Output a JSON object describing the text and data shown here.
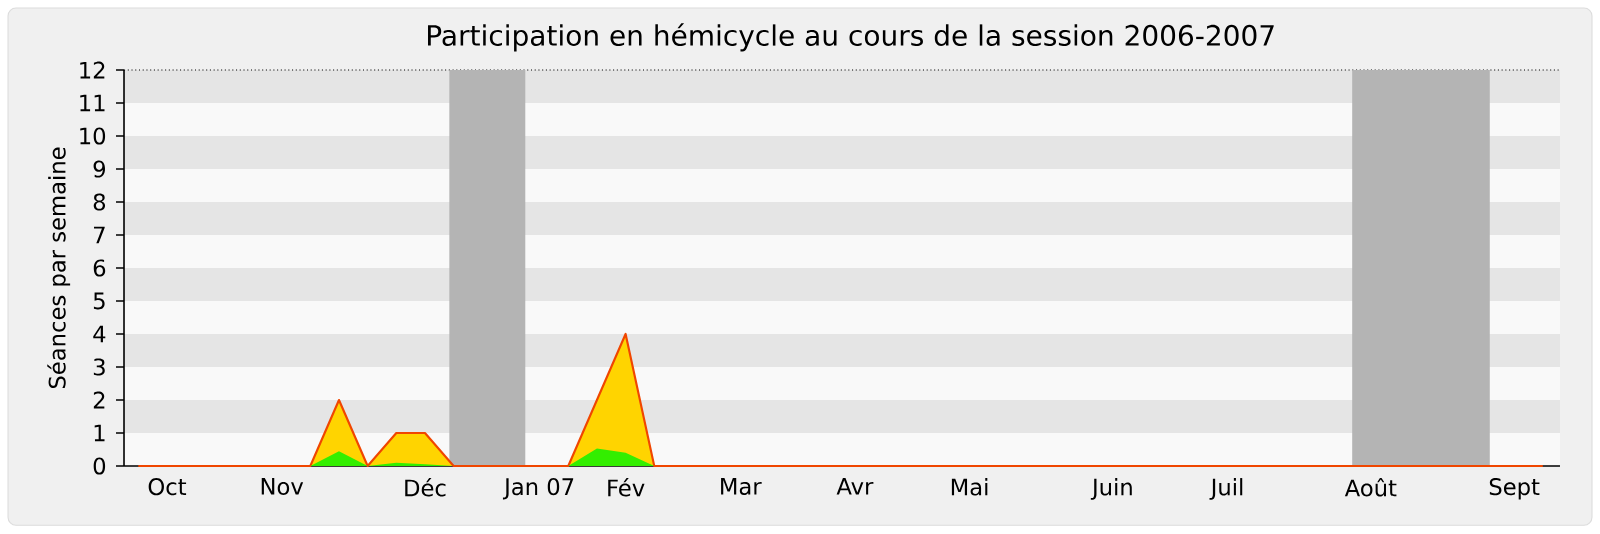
{
  "chart_data": {
    "type": "area",
    "title": "Participation en hémicycle au cours de la session 2006-2007",
    "ylabel": "Séances par semaine",
    "ylim": [
      0,
      12
    ],
    "yticks": [
      0,
      1,
      2,
      3,
      4,
      5,
      6,
      7,
      8,
      9,
      10,
      11,
      12
    ],
    "categories": [
      null,
      "Oct",
      null,
      null,
      null,
      "Nov",
      null,
      null,
      null,
      null,
      "Déc",
      null,
      null,
      null,
      "Jan 07",
      null,
      null,
      "Fév",
      null,
      null,
      null,
      "Mar",
      null,
      null,
      null,
      "Avr",
      null,
      null,
      null,
      "Mai",
      null,
      null,
      null,
      null,
      "Juin",
      null,
      null,
      null,
      "Juil",
      null,
      null,
      null,
      null,
      "Août",
      null,
      null,
      null,
      null,
      "Sept",
      null
    ],
    "series": [
      {
        "color": "#ffd400",
        "values": [
          0,
          0,
          0,
          0,
          0,
          0,
          0,
          2,
          0,
          1,
          1,
          0,
          0,
          0,
          0,
          0,
          2,
          4,
          0,
          0,
          0,
          0,
          0,
          0,
          0,
          0,
          0,
          0,
          0,
          0,
          0,
          0,
          0,
          0,
          0,
          0,
          0,
          0,
          0,
          0,
          0,
          0,
          0,
          0,
          0,
          0,
          0,
          0,
          0,
          0
        ]
      },
      {
        "color": "#33ee00",
        "values": [
          0,
          0,
          0,
          0,
          0,
          0,
          0,
          0.45,
          0,
          0.1,
          0.05,
          0,
          0,
          0,
          0,
          0,
          0.53,
          0.4,
          0,
          0,
          0,
          0,
          0,
          0,
          0,
          0,
          0,
          0,
          0,
          0,
          0,
          0,
          0,
          0,
          0,
          0,
          0,
          0,
          0,
          0,
          0,
          0,
          0,
          0,
          0,
          0,
          0,
          0,
          0,
          0
        ]
      }
    ]
  }
}
